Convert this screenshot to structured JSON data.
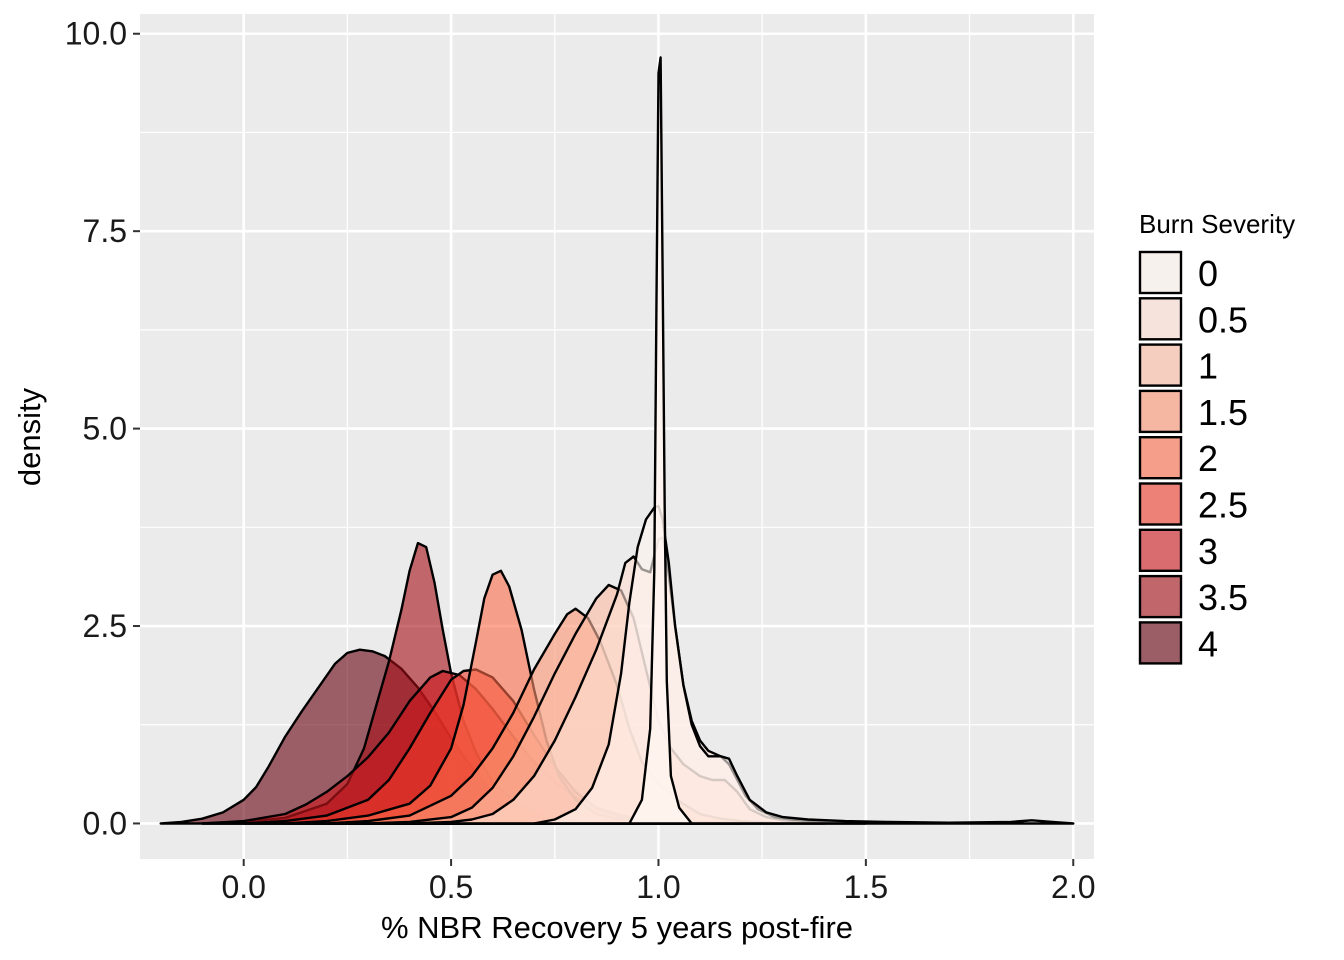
{
  "chart_data": {
    "type": "area",
    "subtype": "density",
    "xlabel": "% NBR Recovery 5 years post-fire",
    "ylabel": "density",
    "xlim": [
      -0.25,
      2.05
    ],
    "ylim": [
      -0.45,
      10.25
    ],
    "x_ticks": [
      0.0,
      0.5,
      1.0,
      1.5,
      2.0
    ],
    "x_tick_labels": [
      "0.0",
      "0.5",
      "1.0",
      "1.5",
      "2.0"
    ],
    "y_ticks": [
      0.0,
      2.5,
      5.0,
      7.5,
      10.0
    ],
    "y_tick_labels": [
      "0.0",
      "2.5",
      "5.0",
      "7.5",
      "10.0"
    ],
    "grid": true,
    "legend": {
      "title": "Burn Severity",
      "position": "right"
    },
    "series": [
      {
        "name": "4",
        "fill": "#67000d",
        "alpha": 0.6,
        "points": [
          [
            -0.2,
            0.0
          ],
          [
            -0.15,
            0.02
          ],
          [
            -0.1,
            0.06
          ],
          [
            -0.05,
            0.14
          ],
          [
            0.0,
            0.3
          ],
          [
            0.03,
            0.46
          ],
          [
            0.06,
            0.72
          ],
          [
            0.1,
            1.1
          ],
          [
            0.14,
            1.42
          ],
          [
            0.18,
            1.72
          ],
          [
            0.22,
            2.02
          ],
          [
            0.25,
            2.16
          ],
          [
            0.28,
            2.2
          ],
          [
            0.31,
            2.18
          ],
          [
            0.34,
            2.12
          ],
          [
            0.38,
            1.96
          ],
          [
            0.42,
            1.72
          ],
          [
            0.46,
            1.42
          ],
          [
            0.5,
            1.08
          ],
          [
            0.54,
            0.78
          ],
          [
            0.58,
            0.52
          ],
          [
            0.62,
            0.3
          ],
          [
            0.66,
            0.16
          ],
          [
            0.7,
            0.08
          ],
          [
            0.75,
            0.03
          ],
          [
            0.8,
            0.0
          ]
        ]
      },
      {
        "name": "3.5",
        "fill": "#a50f15",
        "alpha": 0.6,
        "points": [
          [
            -0.1,
            0.0
          ],
          [
            0.0,
            0.02
          ],
          [
            0.1,
            0.07
          ],
          [
            0.2,
            0.25
          ],
          [
            0.25,
            0.5
          ],
          [
            0.29,
            0.95
          ],
          [
            0.32,
            1.5
          ],
          [
            0.35,
            2.05
          ],
          [
            0.38,
            2.7
          ],
          [
            0.4,
            3.2
          ],
          [
            0.42,
            3.55
          ],
          [
            0.44,
            3.5
          ],
          [
            0.46,
            3.05
          ],
          [
            0.48,
            2.45
          ],
          [
            0.5,
            1.9
          ],
          [
            0.53,
            1.3
          ],
          [
            0.56,
            0.9
          ],
          [
            0.6,
            0.52
          ],
          [
            0.65,
            0.28
          ],
          [
            0.7,
            0.14
          ],
          [
            0.75,
            0.06
          ],
          [
            0.8,
            0.02
          ],
          [
            0.9,
            0.0
          ]
        ]
      },
      {
        "name": "3",
        "fill": "#cb181d",
        "alpha": 0.6,
        "points": [
          [
            -0.1,
            0.0
          ],
          [
            0.0,
            0.03
          ],
          [
            0.1,
            0.12
          ],
          [
            0.15,
            0.24
          ],
          [
            0.2,
            0.4
          ],
          [
            0.25,
            0.6
          ],
          [
            0.3,
            0.84
          ],
          [
            0.35,
            1.15
          ],
          [
            0.4,
            1.55
          ],
          [
            0.45,
            1.85
          ],
          [
            0.48,
            1.93
          ],
          [
            0.52,
            1.88
          ],
          [
            0.56,
            1.7
          ],
          [
            0.6,
            1.45
          ],
          [
            0.65,
            1.1
          ],
          [
            0.7,
            0.78
          ],
          [
            0.75,
            0.52
          ],
          [
            0.8,
            0.33
          ],
          [
            0.85,
            0.2
          ],
          [
            0.9,
            0.12
          ],
          [
            0.95,
            0.06
          ],
          [
            1.0,
            0.03
          ],
          [
            1.1,
            0.01
          ],
          [
            1.2,
            0.0
          ]
        ]
      },
      {
        "name": "2.5",
        "fill": "#ef3b2c",
        "alpha": 0.6,
        "points": [
          [
            0.0,
            0.0
          ],
          [
            0.1,
            0.03
          ],
          [
            0.2,
            0.1
          ],
          [
            0.3,
            0.3
          ],
          [
            0.35,
            0.55
          ],
          [
            0.4,
            0.95
          ],
          [
            0.45,
            1.4
          ],
          [
            0.5,
            1.82
          ],
          [
            0.53,
            1.93
          ],
          [
            0.56,
            1.95
          ],
          [
            0.6,
            1.85
          ],
          [
            0.65,
            1.55
          ],
          [
            0.7,
            1.12
          ],
          [
            0.75,
            0.72
          ],
          [
            0.8,
            0.4
          ],
          [
            0.85,
            0.2
          ],
          [
            0.9,
            0.1
          ],
          [
            0.95,
            0.05
          ],
          [
            1.0,
            0.03
          ],
          [
            1.1,
            0.02
          ],
          [
            1.2,
            0.0
          ]
        ]
      },
      {
        "name": "2",
        "fill": "#fb6a4a",
        "alpha": 0.6,
        "points": [
          [
            0.1,
            0.0
          ],
          [
            0.2,
            0.03
          ],
          [
            0.3,
            0.1
          ],
          [
            0.4,
            0.25
          ],
          [
            0.45,
            0.48
          ],
          [
            0.5,
            0.95
          ],
          [
            0.53,
            1.5
          ],
          [
            0.56,
            2.3
          ],
          [
            0.58,
            2.85
          ],
          [
            0.6,
            3.15
          ],
          [
            0.62,
            3.2
          ],
          [
            0.64,
            3.0
          ],
          [
            0.67,
            2.45
          ],
          [
            0.7,
            1.7
          ],
          [
            0.73,
            1.05
          ],
          [
            0.76,
            0.6
          ],
          [
            0.8,
            0.3
          ],
          [
            0.85,
            0.12
          ],
          [
            0.9,
            0.06
          ],
          [
            1.0,
            0.03
          ],
          [
            1.1,
            0.02
          ],
          [
            1.2,
            0.0
          ]
        ]
      },
      {
        "name": "1.5",
        "fill": "#fc9272",
        "alpha": 0.6,
        "points": [
          [
            0.2,
            0.0
          ],
          [
            0.3,
            0.03
          ],
          [
            0.4,
            0.1
          ],
          [
            0.5,
            0.35
          ],
          [
            0.55,
            0.6
          ],
          [
            0.6,
            0.95
          ],
          [
            0.65,
            1.4
          ],
          [
            0.7,
            1.95
          ],
          [
            0.75,
            2.4
          ],
          [
            0.78,
            2.65
          ],
          [
            0.8,
            2.72
          ],
          [
            0.83,
            2.6
          ],
          [
            0.86,
            2.3
          ],
          [
            0.9,
            1.75
          ],
          [
            0.93,
            1.2
          ],
          [
            0.96,
            0.78
          ],
          [
            1.0,
            0.5
          ],
          [
            1.05,
            0.28
          ],
          [
            1.1,
            0.12
          ],
          [
            1.15,
            0.06
          ],
          [
            1.2,
            0.03
          ],
          [
            1.3,
            0.0
          ]
        ]
      },
      {
        "name": "1",
        "fill": "#fcbba1",
        "alpha": 0.6,
        "points": [
          [
            0.3,
            0.0
          ],
          [
            0.4,
            0.02
          ],
          [
            0.5,
            0.08
          ],
          [
            0.55,
            0.2
          ],
          [
            0.6,
            0.45
          ],
          [
            0.65,
            0.85
          ],
          [
            0.7,
            1.35
          ],
          [
            0.75,
            1.9
          ],
          [
            0.8,
            2.4
          ],
          [
            0.85,
            2.85
          ],
          [
            0.88,
            3.02
          ],
          [
            0.91,
            2.95
          ],
          [
            0.94,
            2.6
          ],
          [
            0.97,
            1.95
          ],
          [
            1.0,
            1.3
          ],
          [
            1.03,
            0.95
          ],
          [
            1.06,
            0.75
          ],
          [
            1.1,
            0.6
          ],
          [
            1.13,
            0.55
          ],
          [
            1.16,
            0.55
          ],
          [
            1.19,
            0.4
          ],
          [
            1.22,
            0.18
          ],
          [
            1.26,
            0.08
          ],
          [
            1.3,
            0.04
          ],
          [
            1.35,
            0.02
          ],
          [
            1.4,
            0.0
          ]
        ]
      },
      {
        "name": "0.5",
        "fill": "#fee0d2",
        "alpha": 0.6,
        "points": [
          [
            0.4,
            0.0
          ],
          [
            0.5,
            0.02
          ],
          [
            0.55,
            0.05
          ],
          [
            0.6,
            0.12
          ],
          [
            0.65,
            0.3
          ],
          [
            0.7,
            0.6
          ],
          [
            0.75,
            1.05
          ],
          [
            0.8,
            1.6
          ],
          [
            0.85,
            2.2
          ],
          [
            0.9,
            2.9
          ],
          [
            0.92,
            3.3
          ],
          [
            0.94,
            3.38
          ],
          [
            0.96,
            3.22
          ],
          [
            0.98,
            3.18
          ],
          [
            1.0,
            3.6
          ],
          [
            1.01,
            3.62
          ],
          [
            1.02,
            3.35
          ],
          [
            1.04,
            2.5
          ],
          [
            1.06,
            1.75
          ],
          [
            1.08,
            1.3
          ],
          [
            1.1,
            1.05
          ],
          [
            1.12,
            0.92
          ],
          [
            1.15,
            0.85
          ],
          [
            1.17,
            0.75
          ],
          [
            1.19,
            0.55
          ],
          [
            1.21,
            0.35
          ],
          [
            1.24,
            0.18
          ],
          [
            1.28,
            0.08
          ],
          [
            1.32,
            0.05
          ],
          [
            1.4,
            0.02
          ],
          [
            1.5,
            0.0
          ]
        ]
      },
      {
        "name": "0",
        "fill": "#fff5f0",
        "alpha": 0.6,
        "points": [
          [
            0.7,
            0.0
          ],
          [
            0.75,
            0.05
          ],
          [
            0.8,
            0.18
          ],
          [
            0.84,
            0.45
          ],
          [
            0.88,
            1.0
          ],
          [
            0.91,
            1.9
          ],
          [
            0.93,
            2.8
          ],
          [
            0.95,
            3.5
          ],
          [
            0.97,
            3.85
          ],
          [
            0.99,
            4.0
          ],
          [
            1.0,
            4.02
          ],
          [
            1.01,
            3.85
          ],
          [
            1.025,
            3.3
          ],
          [
            1.04,
            2.5
          ],
          [
            1.06,
            1.75
          ],
          [
            1.08,
            1.25
          ],
          [
            1.1,
            0.98
          ],
          [
            1.12,
            0.85
          ],
          [
            1.15,
            0.85
          ],
          [
            1.17,
            0.82
          ],
          [
            1.19,
            0.6
          ],
          [
            1.22,
            0.3
          ],
          [
            1.26,
            0.14
          ],
          [
            1.3,
            0.08
          ],
          [
            1.36,
            0.05
          ],
          [
            1.45,
            0.03
          ],
          [
            1.55,
            0.02
          ],
          [
            1.7,
            0.01
          ],
          [
            1.85,
            0.02
          ],
          [
            1.9,
            0.04
          ],
          [
            1.95,
            0.02
          ],
          [
            2.0,
            0.0
          ]
        ]
      }
    ],
    "spike_series": {
      "name": "0",
      "points": [
        [
          0.93,
          0.0
        ],
        [
          0.96,
          0.3
        ],
        [
          0.98,
          1.2
        ],
        [
          0.99,
          3.2
        ],
        [
          0.995,
          6.5
        ],
        [
          1.0,
          9.5
        ],
        [
          1.005,
          9.7
        ],
        [
          1.01,
          7.0
        ],
        [
          1.015,
          4.0
        ],
        [
          1.02,
          1.8
        ],
        [
          1.03,
          0.6
        ],
        [
          1.05,
          0.2
        ],
        [
          1.08,
          0.0
        ]
      ]
    }
  }
}
